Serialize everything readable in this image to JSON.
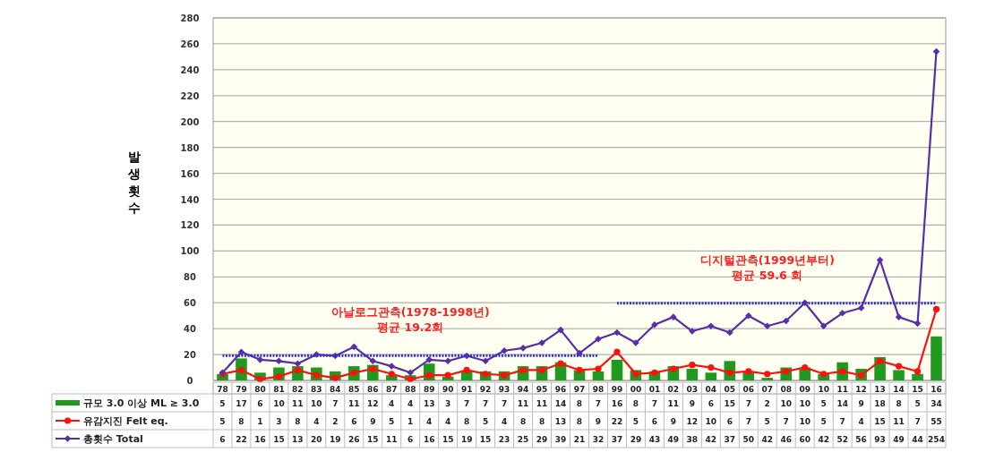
{
  "chart_data": {
    "type": "bar",
    "ylabel": "발생 횟수",
    "categories": [
      "78",
      "79",
      "80",
      "81",
      "82",
      "83",
      "84",
      "85",
      "86",
      "87",
      "88",
      "89",
      "90",
      "91",
      "92",
      "93",
      "94",
      "95",
      "96",
      "97",
      "98",
      "99",
      "00",
      "01",
      "02",
      "03",
      "04",
      "05",
      "06",
      "07",
      "08",
      "09",
      "10",
      "11",
      "12",
      "13",
      "14",
      "15",
      "16"
    ],
    "series": [
      {
        "name": "규모 3.0 이상 ML ≥ 3.0",
        "color": "#1f9a1f",
        "values": [
          5,
          17,
          6,
          10,
          11,
          10,
          7,
          11,
          12,
          4,
          4,
          13,
          3,
          7,
          7,
          7,
          11,
          11,
          14,
          8,
          7,
          16,
          8,
          7,
          11,
          9,
          6,
          15,
          7,
          2,
          10,
          10,
          5,
          14,
          9,
          18,
          8,
          5,
          34
        ],
        "value_labels": [
          "5",
          "17",
          "6",
          "10",
          "11",
          "10",
          "7",
          "11",
          "12",
          "4",
          "4",
          "13",
          "3",
          "7",
          "7",
          "7",
          "11",
          "11",
          "14",
          "8",
          "7",
          "16",
          "8",
          "7",
          "11",
          "9",
          "6",
          "15",
          "7",
          "2",
          "10",
          "10",
          "5",
          "14",
          "9",
          "18",
          "8",
          "5",
          "34"
        ]
      },
      {
        "name": "유감지진  Felt eq.",
        "type": "line",
        "marker": "circle",
        "color": "#ff1010",
        "values": [
          5,
          8,
          1,
          3,
          8,
          4,
          2,
          6,
          9,
          5,
          1,
          4,
          4,
          8,
          5,
          4,
          8,
          8,
          13,
          8,
          9,
          22,
          5,
          6,
          9,
          12,
          10,
          6,
          7,
          5,
          7,
          10,
          5,
          7,
          4,
          15,
          11,
          7,
          55
        ],
        "value_labels": [
          "5",
          "8",
          "1",
          "3",
          "8",
          "4",
          "2",
          "6",
          "9",
          "5",
          "1",
          "4",
          "4",
          "8",
          "5",
          "4",
          "8",
          "8",
          "13",
          "8",
          "9",
          "22",
          "5",
          "6",
          "9",
          "12",
          "10",
          "6",
          "7",
          "5",
          "7",
          "10",
          "5",
          "7",
          "4",
          "15",
          "11",
          "7",
          "55"
        ]
      },
      {
        "name": "총횟수  Total",
        "type": "line",
        "marker": "diamond",
        "color": "#5a2ea6",
        "values": [
          6,
          22,
          16,
          15,
          13,
          20,
          19,
          26,
          15,
          11,
          6,
          16,
          15,
          19,
          15,
          23,
          25,
          29,
          39,
          21,
          32,
          37,
          29,
          43,
          49,
          38,
          42,
          37,
          50,
          42,
          46,
          60,
          42,
          52,
          56,
          93,
          49,
          44,
          254
        ],
        "value_labels": [
          "6",
          "22",
          "16",
          "15",
          "13",
          "20",
          "19",
          "26",
          "15",
          "11",
          "6",
          "16",
          "15",
          "19",
          "15",
          "23",
          "25",
          "29",
          "39",
          "21",
          "32",
          "37",
          "29",
          "43",
          "49",
          "38",
          "42",
          "37",
          "50",
          "42",
          "46",
          "60",
          "42",
          "52",
          "56",
          "93",
          "49",
          "44",
          "254"
        ]
      },
      {
        "type": "line",
        "marker": "none",
        "line_style": "dotted",
        "color": "#3333cc",
        "values": [
          19.2,
          19.2,
          19.2,
          19.2,
          19.2,
          19.2,
          19.2,
          19.2,
          19.2,
          19.2,
          19.2,
          19.2,
          19.2,
          19.2,
          19.2,
          19.2,
          19.2,
          19.2,
          19.2,
          19.2,
          19.2,
          null,
          null,
          null,
          null,
          null,
          null,
          null,
          null,
          null,
          null,
          null,
          null,
          null,
          null,
          null,
          null,
          null,
          null
        ]
      },
      {
        "type": "line",
        "marker": "none",
        "line_style": "dotted",
        "color": "#3333cc",
        "values": [
          null,
          null,
          null,
          null,
          null,
          null,
          null,
          null,
          null,
          null,
          null,
          null,
          null,
          null,
          null,
          null,
          null,
          null,
          null,
          null,
          null,
          59.6,
          59.6,
          59.6,
          59.6,
          59.6,
          59.6,
          59.6,
          59.6,
          59.6,
          59.6,
          59.6,
          59.6,
          59.6,
          59.6,
          59.6,
          59.6,
          59.6,
          59.6
        ]
      }
    ],
    "annotations": [
      {
        "text": "아날로그관측(1978-1998년)\n평균 19.2회",
        "x": "88",
        "y": 19.2
      },
      {
        "text": "디지털관측(1999년부터)\n평균 59.6 회",
        "x": "07",
        "y": 59.6
      }
    ],
    "ylim": [
      0,
      280
    ],
    "yticks": [
      0,
      20,
      40,
      60,
      80,
      100,
      120,
      140,
      160,
      180,
      200,
      220,
      240,
      260,
      280
    ],
    "grid": "y",
    "legend": "bottom"
  }
}
